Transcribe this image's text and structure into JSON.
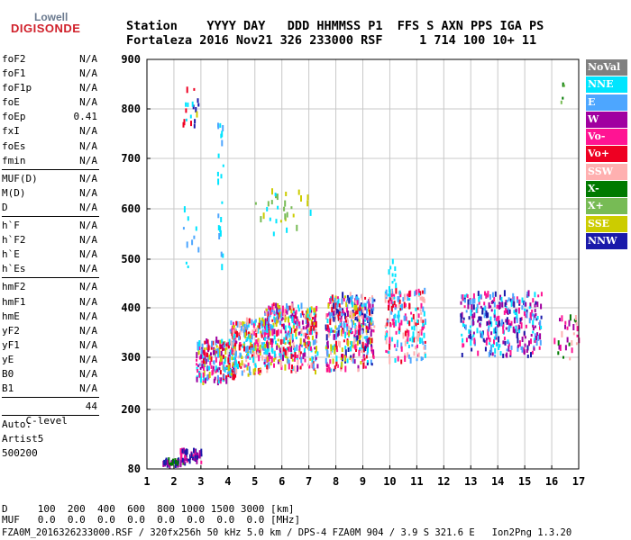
{
  "logo": {
    "line1": "Lowell",
    "line2": "DIGISONDE"
  },
  "header": {
    "row1": "Station    YYYY DAY   DDD HHMMSS P1  FFS S AXN PPS IGA PS",
    "row2": "Fortaleza 2016 Nov21 326 233000 RSF     1 714 100 10+ 11"
  },
  "params": {
    "group1": [
      {
        "name": "foF2",
        "value": "N/A"
      },
      {
        "name": "foF1",
        "value": "N/A"
      },
      {
        "name": "foF1p",
        "value": "N/A"
      },
      {
        "name": "foE",
        "value": "N/A"
      },
      {
        "name": "foEp",
        "value": "0.41"
      },
      {
        "name": "fxI",
        "value": "N/A"
      },
      {
        "name": "foEs",
        "value": "N/A"
      },
      {
        "name": "fmin",
        "value": "N/A"
      }
    ],
    "group2": [
      {
        "name": "MUF(D)",
        "value": "N/A"
      },
      {
        "name": "M(D)",
        "value": "N/A"
      },
      {
        "name": "D",
        "value": "N/A"
      }
    ],
    "group3": [
      {
        "name": "h`F",
        "value": "N/A"
      },
      {
        "name": "h`F2",
        "value": "N/A"
      },
      {
        "name": "h`E",
        "value": "N/A"
      },
      {
        "name": "h`Es",
        "value": "N/A"
      }
    ],
    "group4": [
      {
        "name": "hmF2",
        "value": "N/A"
      },
      {
        "name": "hmF1",
        "value": "N/A"
      },
      {
        "name": "hmE",
        "value": "N/A"
      },
      {
        "name": "yF2",
        "value": "N/A"
      },
      {
        "name": "yF1",
        "value": "N/A"
      },
      {
        "name": "yE",
        "value": "N/A"
      },
      {
        "name": "B0",
        "value": "N/A"
      },
      {
        "name": "B1",
        "value": "N/A"
      }
    ],
    "clevel": {
      "name": "C-level",
      "value": "44"
    },
    "auto": [
      "Auto:",
      "Artist5",
      "500200"
    ]
  },
  "legend": [
    {
      "label": "NoVal",
      "color": "#808080"
    },
    {
      "label": "NNE",
      "color": "#00e5ff"
    },
    {
      "label": "E",
      "color": "#4da6ff"
    },
    {
      "label": "W",
      "color": "#a000a0"
    },
    {
      "label": "Vo-",
      "color": "#ff1493"
    },
    {
      "label": "Vo+",
      "color": "#ee0022"
    },
    {
      "label": "SSW",
      "color": "#ffb0b0"
    },
    {
      "label": "X-",
      "color": "#007a00"
    },
    {
      "label": "X+",
      "color": "#77bb55"
    },
    {
      "label": "SSE",
      "color": "#cccc00"
    },
    {
      "label": "NNW",
      "color": "#1a1aaa"
    }
  ],
  "bottom": {
    "d_row": "D     100  200  400  600  800 1000 1500 3000 [km]",
    "muf_row": "MUF   0.0  0.0  0.0  0.0  0.0  0.0  0.0  0.0 [MHz]",
    "footer": "FZA0M_2016326233000.RSF / 320fx256h 50 kHz 5.0 km / DPS-4 FZA0M 904 / 3.9 S 321.6 E   Ion2Png 1.3.20"
  },
  "chart_data": {
    "type": "scatter",
    "xlim": [
      1,
      17
    ],
    "ylim": [
      80,
      900
    ],
    "xticks": [
      "1",
      "2",
      "3",
      "4",
      "5",
      "6",
      "7",
      "8",
      "9",
      "10",
      "11",
      "12",
      "13",
      "14",
      "15",
      "16",
      "17"
    ],
    "yticks": [
      "80",
      "200",
      "300",
      "400",
      "500",
      "600",
      "700",
      "800",
      "900"
    ],
    "ytick_values": [
      80,
      200,
      300,
      400,
      500,
      600,
      700,
      800,
      900
    ],
    "grid": true,
    "clusters": [
      {
        "x": [
          1.5,
          2.4
        ],
        "y": [
          80,
          92
        ],
        "colors": [
          "#007a00",
          "#a000a0",
          "#1a1aaa"
        ],
        "n": 40
      },
      {
        "x": [
          2.2,
          3.0
        ],
        "y": [
          88,
          112
        ],
        "colors": [
          "#a000a0",
          "#ff1493",
          "#1a1aaa"
        ],
        "n": 50
      },
      {
        "x": [
          2.8,
          4.3
        ],
        "y": [
          245,
          330
        ],
        "colors": [
          "#4da6ff",
          "#00e5ff",
          "#ff1493",
          "#ee0022",
          "#cccc00",
          "#a000a0"
        ],
        "n": 220
      },
      {
        "x": [
          4.0,
          5.5
        ],
        "y": [
          262,
          370
        ],
        "colors": [
          "#4da6ff",
          "#00e5ff",
          "#ff1493",
          "#ee0022",
          "#cccc00",
          "#ffb0b0"
        ],
        "n": 260
      },
      {
        "x": [
          5.3,
          7.3
        ],
        "y": [
          265,
          400
        ],
        "colors": [
          "#4da6ff",
          "#00e5ff",
          "#ff1493",
          "#ee0022",
          "#cccc00",
          "#ffb0b0",
          "#a000a0"
        ],
        "n": 380
      },
      {
        "x": [
          7.6,
          9.4
        ],
        "y": [
          270,
          420
        ],
        "colors": [
          "#4da6ff",
          "#00e5ff",
          "#ffb0b0",
          "#ee0022",
          "#cccc00",
          "#a000a0",
          "#1a1aaa",
          "#ff1493"
        ],
        "n": 420
      },
      {
        "x": [
          9.8,
          11.3
        ],
        "y": [
          285,
          430
        ],
        "colors": [
          "#00e5ff",
          "#ffb0b0",
          "#ee0022",
          "#ff1493",
          "#4da6ff"
        ],
        "n": 200
      },
      {
        "x": [
          12.6,
          15.6
        ],
        "y": [
          295,
          425
        ],
        "colors": [
          "#1a1aaa",
          "#a000a0",
          "#00e5ff",
          "#4da6ff",
          "#ff1493"
        ],
        "n": 340
      },
      {
        "x": [
          16.0,
          17.0
        ],
        "y": [
          290,
          375
        ],
        "colors": [
          "#a000a0",
          "#007a00",
          "#ffb0b0",
          "#ff1493"
        ],
        "n": 30
      },
      {
        "x": [
          2.3,
          2.9
        ],
        "y": [
          760,
          840
        ],
        "colors": [
          "#00e5ff",
          "#1a1aaa",
          "#cccc00",
          "#ee0022"
        ],
        "n": 18
      },
      {
        "x": [
          2.3,
          3.0
        ],
        "y": [
          480,
          600
        ],
        "colors": [
          "#4da6ff",
          "#00e5ff"
        ],
        "n": 10
      },
      {
        "x": [
          3.6,
          3.8
        ],
        "y": [
          470,
          790
        ],
        "colors": [
          "#00e5ff",
          "#4da6ff"
        ],
        "n": 22
      },
      {
        "x": [
          5.0,
          7.2
        ],
        "y": [
          530,
          630
        ],
        "colors": [
          "#cccc00",
          "#77bb55",
          "#00e5ff"
        ],
        "n": 30
      },
      {
        "x": [
          9.9,
          10.2
        ],
        "y": [
          430,
          490
        ],
        "colors": [
          "#00e5ff"
        ],
        "n": 10
      },
      {
        "x": [
          16.3,
          16.5
        ],
        "y": [
          800,
          845
        ],
        "colors": [
          "#007a00",
          "#77bb55"
        ],
        "n": 4
      }
    ]
  }
}
